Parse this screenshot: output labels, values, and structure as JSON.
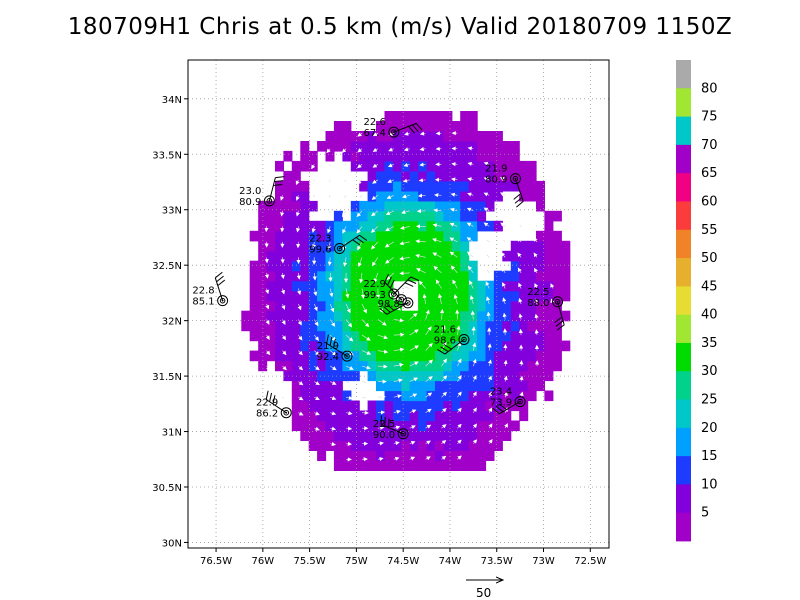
{
  "title": "180709H1 Chris at 0.5 km (m/s) Valid 20180709 1150Z",
  "chart_data": {
    "type": "heatmap",
    "title": "180709H1 Chris at 0.5 km (m/s) Valid 20180709 1150Z",
    "xlim_deg_west": [
      76.8,
      72.3
    ],
    "ylim_deg_north": [
      29.95,
      34.35
    ],
    "x_ticks": [
      "76.5W",
      "76W",
      "75.5W",
      "75W",
      "74.5W",
      "74W",
      "73.5W",
      "73W",
      "72.5W"
    ],
    "x_tick_values": [
      -76.5,
      -76,
      -75.5,
      -75,
      -74.5,
      -74,
      -73.5,
      -73,
      -72.5
    ],
    "y_ticks": [
      "34N",
      "33.5N",
      "33N",
      "32.5N",
      "32N",
      "31.5N",
      "31N",
      "30.5N",
      "30N"
    ],
    "y_tick_values": [
      34,
      33.5,
      33,
      32.5,
      32,
      31.5,
      31,
      30.5,
      30
    ],
    "grid": true,
    "center": {
      "lon": -74.5,
      "lat": 32.2
    },
    "wind_speed_field": {
      "units": "m/s",
      "max_ring_radius_deg": 1.8,
      "peak_value": 32,
      "peak_location": {
        "lon": -74.35,
        "lat": 31.85
      },
      "calm_core_radius_deg": 0.15
    },
    "colorbar": {
      "labels": [
        "80",
        "75",
        "70",
        "65",
        "60",
        "55",
        "50",
        "45",
        "40",
        "35",
        "30",
        "25",
        "20",
        "15",
        "10",
        "5"
      ],
      "bins": [
        {
          "min": 0,
          "color": "#a000c8"
        },
        {
          "min": 5,
          "color": "#8200dc"
        },
        {
          "min": 10,
          "color": "#1e3cff"
        },
        {
          "min": 15,
          "color": "#00a0ff"
        },
        {
          "min": 20,
          "color": "#00c8c8"
        },
        {
          "min": 25,
          "color": "#00d28c"
        },
        {
          "min": 30,
          "color": "#00dc00"
        },
        {
          "min": 35,
          "color": "#a0e632"
        },
        {
          "min": 40,
          "color": "#e6dc32"
        },
        {
          "min": 45,
          "color": "#e6af2d"
        },
        {
          "min": 50,
          "color": "#f08228"
        },
        {
          "min": 55,
          "color": "#fa3c3c"
        },
        {
          "min": 60,
          "color": "#f00082"
        },
        {
          "min": 65,
          "color": "#a000c8"
        },
        {
          "min": 70,
          "color": "#00c8c8"
        },
        {
          "min": 75,
          "color": "#a0e632"
        },
        {
          "min": 80,
          "color": "#aaaaaa"
        }
      ]
    },
    "observations": [
      {
        "lon": -74.6,
        "lat": 33.7,
        "t": "22.6",
        "p": "67.4"
      },
      {
        "lon": -73.3,
        "lat": 33.28,
        "t": "21.9",
        "p": "80.9"
      },
      {
        "lon": -75.93,
        "lat": 33.08,
        "t": "23.0",
        "p": "80.9"
      },
      {
        "lon": -75.18,
        "lat": 32.65,
        "t": "22.3",
        "p": "99.6"
      },
      {
        "lon": -76.43,
        "lat": 32.18,
        "t": "22.8",
        "p": "85.1"
      },
      {
        "lon": -74.6,
        "lat": 32.24,
        "t": "22.9",
        "p": "99.3"
      },
      {
        "lon": -74.52,
        "lat": 32.19,
        "t": "",
        "p": ""
      },
      {
        "lon": -74.45,
        "lat": 32.16,
        "t": "",
        "p": "98.8"
      },
      {
        "lon": -72.85,
        "lat": 32.17,
        "t": "22.5",
        "p": "88.0"
      },
      {
        "lon": -73.85,
        "lat": 31.83,
        "t": "21.6",
        "p": "98.6"
      },
      {
        "lon": -75.1,
        "lat": 31.68,
        "t": "21.9",
        "p": "92.4"
      },
      {
        "lon": -73.25,
        "lat": 31.27,
        "t": "23.4",
        "p": "73.9"
      },
      {
        "lon": -75.75,
        "lat": 31.17,
        "t": "22.9",
        "p": "86.2"
      },
      {
        "lon": -74.5,
        "lat": 30.98,
        "t": "22.5",
        "p": "90.0"
      }
    ]
  },
  "reference_vector": {
    "label": "50"
  }
}
